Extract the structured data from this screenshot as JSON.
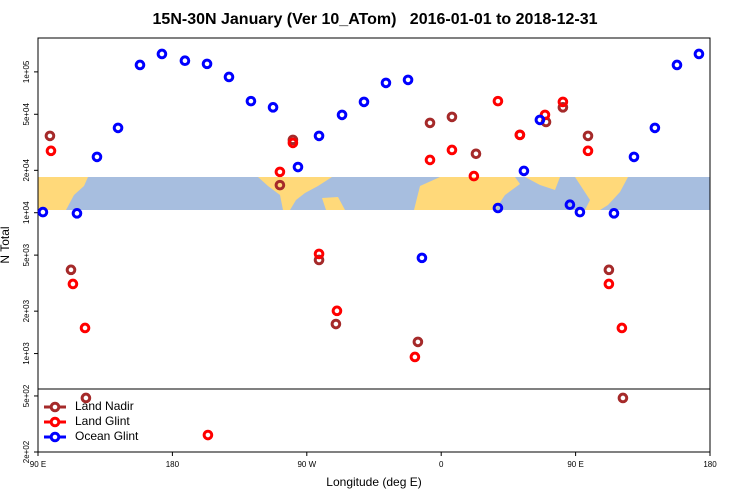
{
  "chart_data": {
    "type": "scatter",
    "title": "15N-30N January (Ver 10_ATom)   2016-01-01 to 2018-12-31",
    "xlabel": "Longitude (deg E)",
    "ylabel": "N Total",
    "log_y": true,
    "legend": "lower left",
    "xlim": [
      90,
      540
    ],
    "ylim": [
      200,
      174000
    ],
    "xticks": [
      {
        "value": 90,
        "label": "90 E"
      },
      180,
      {
        "value": 270,
        "label": "90 W"
      },
      {
        "value": 360,
        "label": "0"
      },
      {
        "value": 450,
        "label": "90 E"
      },
      {
        "value": 540,
        "label": "180"
      }
    ],
    "yticks": [
      {
        "value": 200,
        "label": "2e+02"
      },
      {
        "value": 500,
        "label": "5e+02"
      },
      {
        "value": 1000,
        "label": "1e+03"
      },
      {
        "value": 2000,
        "label": "2e+03"
      },
      {
        "value": 5000,
        "label": "5e+03"
      },
      {
        "value": 10000,
        "label": "1e+04"
      },
      {
        "value": 20000,
        "label": "2e+04"
      },
      {
        "value": 50000,
        "label": "5e+04"
      },
      {
        "value": 100000,
        "label": "1e+05"
      }
    ],
    "series": [
      {
        "name": "Land Nadir",
        "color": "#a52a2a",
        "x": [
          98.0,
          112.1,
          122.1,
          252.0,
          260.7,
          278.2,
          289.5,
          344.4,
          352.5,
          367.2,
          383.3,
          412.7,
          430.2,
          441.5,
          458.3,
          472.3,
          481.7
        ],
        "values": [
          35100,
          3930,
          484,
          15700,
          32900,
          4620,
          1620,
          1210,
          43400,
          47900,
          26200,
          35700,
          44100,
          56000,
          35100,
          3930,
          484
        ]
      },
      {
        "name": "Land Glint",
        "color": "#ff0000",
        "x": [
          98.7,
          113.4,
          121.5,
          203.8,
          252.0,
          260.7,
          278.2,
          290.2,
          342.4,
          352.5,
          367.2,
          381.9,
          398.0,
          412.7,
          429.5,
          441.5,
          458.3,
          472.3,
          481.0
        ],
        "values": [
          27500,
          3120,
          1520,
          264,
          19500,
          31300,
          5100,
          2010,
          946,
          23700,
          27900,
          18200,
          62000,
          35700,
          49500,
          61200,
          27500,
          3120,
          1520
        ]
      },
      {
        "name": "Ocean Glint",
        "color": "#0000ff",
        "x": [
          93.3,
          116.1,
          129.5,
          143.6,
          158.3,
          173.0,
          188.4,
          203.2,
          217.9,
          232.6,
          247.4,
          264.1,
          278.2,
          293.6,
          308.3,
          323.0,
          337.8,
          347.1,
          398.0,
          415.4,
          426.1,
          446.2,
          452.9,
          475.7,
          489.1,
          503.1,
          517.9,
          532.6
        ],
        "values": [
          10100,
          9900,
          24900,
          40000,
          112000,
          134000,
          120000,
          114000,
          92000,
          62000,
          56000,
          21100,
          35100,
          49500,
          61200,
          83500,
          87700,
          4780,
          10800,
          19800,
          45600,
          11400,
          10100,
          9900,
          24900,
          40000,
          112000,
          134000
        ]
      }
    ]
  }
}
